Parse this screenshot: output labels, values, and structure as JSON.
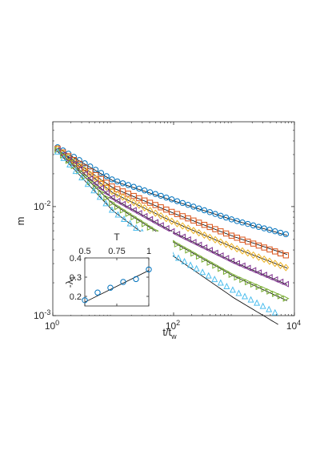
{
  "chart_data": [
    {
      "type": "scatter",
      "title": "",
      "xlabel": "t/t",
      "xlabel_sub": "w",
      "ylabel": "m",
      "x_scale": "log",
      "y_scale": "log",
      "xlim": [
        1,
        10000
      ],
      "ylim": [
        0.001,
        0.06
      ],
      "grid": false,
      "legend": "none",
      "x_ticks": [
        {
          "value": 1,
          "base": "10",
          "exp": "0"
        },
        {
          "value": 100,
          "base": "10",
          "exp": "2"
        },
        {
          "value": 10000,
          "base": "10",
          "exp": "4"
        }
      ],
      "y_ticks": [
        {
          "value": 0.001,
          "base": "10",
          "exp": "-3"
        },
        {
          "value": 0.01,
          "base": "10",
          "exp": "-2"
        }
      ],
      "series": [
        {
          "marker": "circle",
          "color": "#0072BD",
          "x": [
            1.2,
            10,
            100,
            1000,
            8000
          ],
          "values": [
            0.035,
            0.0175,
            0.0115,
            0.0075,
            0.0055
          ],
          "fit": [
            0.0345,
            0.0172,
            0.0113,
            0.0075,
            0.0054
          ]
        },
        {
          "marker": "square",
          "color": "#D95319",
          "x": [
            1.2,
            10,
            100,
            1000,
            8000
          ],
          "values": [
            0.034,
            0.015,
            0.0088,
            0.0053,
            0.0035
          ],
          "fit": [
            0.0335,
            0.0148,
            0.0087,
            0.0053,
            0.0036
          ]
        },
        {
          "marker": "diamond",
          "color": "#EDB120",
          "x": [
            1.2,
            10,
            100,
            1000,
            8000
          ],
          "values": [
            0.034,
            0.0135,
            0.0072,
            0.0042,
            0.0027
          ],
          "fit": [
            0.0335,
            0.0133,
            0.0072,
            0.0042,
            0.0027
          ]
        },
        {
          "marker": "triangle-left",
          "color": "#7E2F8E",
          "x": [
            1.2,
            10,
            100,
            1000,
            8000
          ],
          "values": [
            0.033,
            0.0118,
            0.0058,
            0.0031,
            0.0019
          ],
          "fit": [
            0.0325,
            0.0118,
            0.0058,
            0.0031,
            0.0019
          ]
        },
        {
          "marker": "triangle-right",
          "color": "#77AC30",
          "x": [
            1.2,
            10,
            100,
            1000,
            8000
          ],
          "values": [
            0.033,
            0.0105,
            0.0047,
            0.0023,
            0.0014
          ],
          "fit": [
            0.0325,
            0.0105,
            0.0047,
            0.0023,
            0.00135
          ]
        },
        {
          "marker": "triangle-up",
          "color": "#4DBEEE",
          "x": [
            1.2,
            10,
            100,
            1000,
            6000
          ],
          "values": [
            0.032,
            0.0091,
            0.0036,
            0.0017,
            0.001
          ],
          "fit": [
            0.032,
            0.0091,
            0.0035,
            0.00145,
            0.0008
          ]
        }
      ]
    },
    {
      "type": "scatter",
      "title": "",
      "xlabel": "T",
      "ylabel": "-λ",
      "ylabel_sub": "1",
      "x_scale": "linear",
      "y_scale": "linear",
      "xlim": [
        0.5,
        1.0
      ],
      "ylim": [
        0.15,
        0.4
      ],
      "x_ticks": [
        "0.5",
        "0.75",
        "1"
      ],
      "y_ticks": [
        "0.2",
        "0.3",
        "0.4"
      ],
      "x_tick_position": "top",
      "marker": "circle",
      "color": "#0072BD",
      "x": [
        0.5,
        0.6,
        0.7,
        0.8,
        0.9,
        1.0
      ],
      "values": [
        0.18,
        0.22,
        0.245,
        0.275,
        0.29,
        0.34
      ],
      "fit": {
        "x": [
          0.5,
          1.0
        ],
        "values": [
          0.17,
          0.335
        ]
      }
    }
  ]
}
